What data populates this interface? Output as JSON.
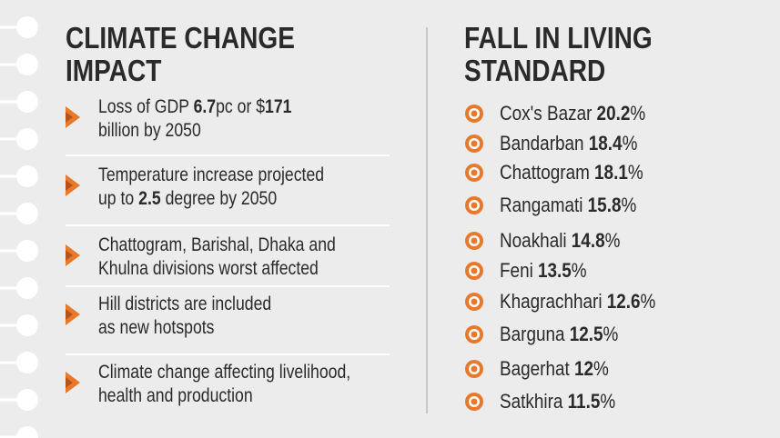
{
  "left": {
    "title": [
      "CLIMATE CHANGE",
      "IMPACT"
    ],
    "items": [
      {
        "lines": [
          [
            {
              "text": "Loss of GDP "
            },
            {
              "strong": "6.7"
            },
            {
              "text": "pc or $"
            },
            {
              "strong": "171"
            }
          ],
          [
            {
              "text": "billion by 2050"
            }
          ]
        ]
      },
      {
        "lines": [
          [
            {
              "text": "Temperature increase projected"
            }
          ],
          [
            {
              "text": "up to "
            },
            {
              "strong": "2.5"
            },
            {
              "text": " degree by 2050"
            }
          ]
        ]
      },
      {
        "lines": [
          [
            {
              "text": "Chattogram, Barishal, Dhaka and"
            }
          ],
          [
            {
              "text": "Khulna divisions worst affected"
            }
          ]
        ]
      },
      {
        "lines": [
          [
            {
              "text": "Hill districts are included"
            }
          ],
          [
            {
              "text": "as new hotspots"
            }
          ]
        ]
      },
      {
        "lines": [
          [
            {
              "text": "Climate change affecting livelihood,"
            }
          ],
          [
            {
              "text": "health and production"
            }
          ]
        ]
      }
    ]
  },
  "right": {
    "title": [
      "FALL IN LIVING",
      "STANDARD"
    ],
    "items": [
      {
        "name": "Cox's Bazar",
        "value": 20.2,
        "unit": "%"
      },
      {
        "name": "Bandarban",
        "value": 18.4,
        "unit": "%"
      },
      {
        "name": "Chattogram",
        "value": 18.1,
        "unit": "%"
      },
      {
        "name": "Rangamati",
        "value": 15.8,
        "unit": "%"
      },
      {
        "name": "Noakhali",
        "value": 14.8,
        "unit": "%"
      },
      {
        "name": "Feni",
        "value": 13.5,
        "unit": "%"
      },
      {
        "name": "Khagrachhari",
        "value": 12.6,
        "unit": "%"
      },
      {
        "name": "Barguna",
        "value": 12.5,
        "unit": "%"
      },
      {
        "name": "Bagerhat",
        "value": 12,
        "unit": "%"
      },
      {
        "name": "Satkhira",
        "value": 11.5,
        "unit": "%"
      }
    ]
  }
}
